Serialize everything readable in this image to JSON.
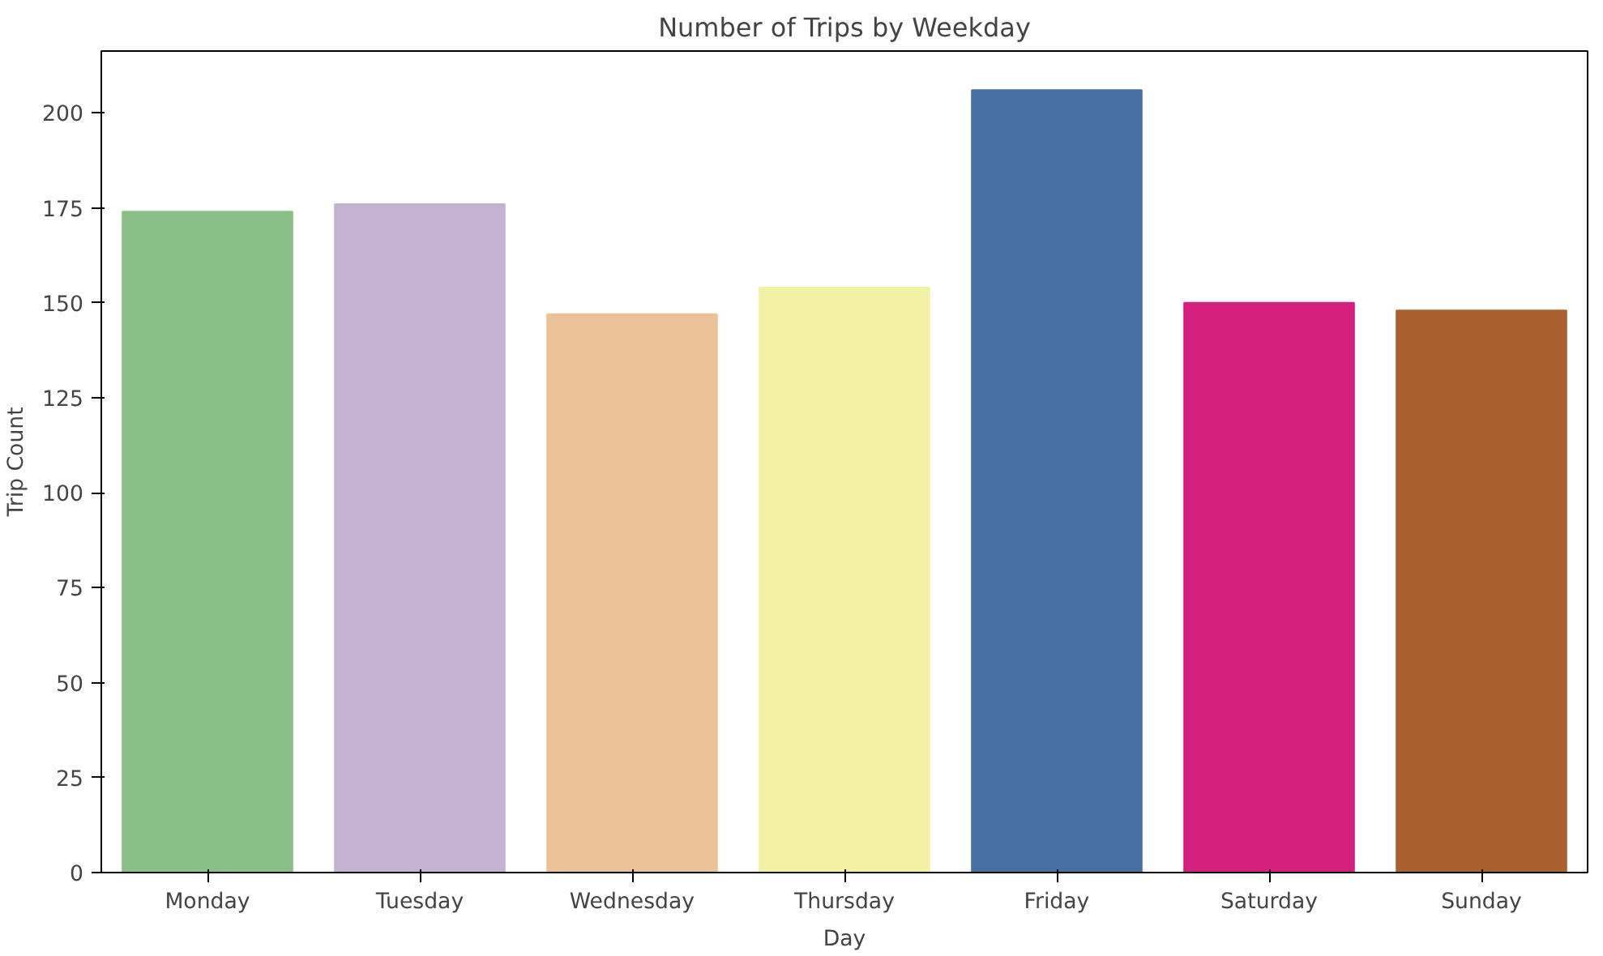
{
  "chart_data": {
    "type": "bar",
    "title": "Number of Trips by Weekday",
    "xlabel": "Day",
    "ylabel": "Trip Count",
    "categories": [
      "Monday",
      "Tuesday",
      "Wednesday",
      "Thursday",
      "Friday",
      "Saturday",
      "Sunday"
    ],
    "values": [
      174,
      176,
      147,
      154,
      206,
      150,
      148
    ],
    "colors": [
      "#8bbf88",
      "#c1b3d1",
      "#edc198",
      "#f2f1a4",
      "#4670a1",
      "#d3207f",
      "#a9612e"
    ],
    "ylim": [
      0,
      216.3
    ],
    "yticks": [
      0,
      25,
      50,
      75,
      100,
      125,
      150,
      175,
      200
    ],
    "grid": false
  }
}
